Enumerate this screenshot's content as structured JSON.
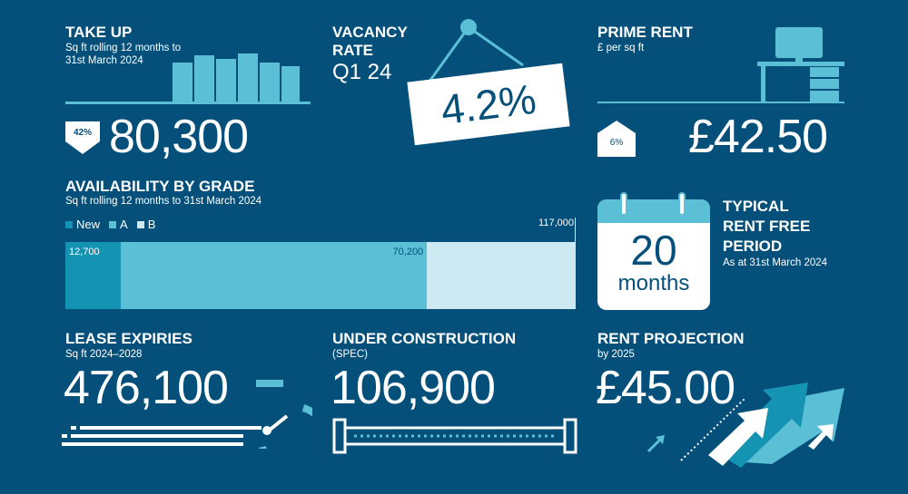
{
  "colors": {
    "background": "#05507a",
    "new": "#1593b3",
    "a": "#5bc0d6",
    "b": "#cde9f1",
    "accent": "#5bc0d6"
  },
  "take_up": {
    "title": "TAKE UP",
    "subtitle_1": "Sq ft rolling 12 months to",
    "subtitle_2": "31st March 2024",
    "value": "80,300",
    "change": "42%",
    "direction": "down"
  },
  "vacancy": {
    "title_1": "VACANCY",
    "title_2": "RATE",
    "period": "Q1 24",
    "value": "4.2%"
  },
  "prime_rent": {
    "title": "PRIME RENT",
    "subtitle": "£ per sq ft",
    "value": "£42.50",
    "change": "6%",
    "direction": "up"
  },
  "availability": {
    "title": "AVAILABILITY BY GRADE",
    "subtitle": "Sq ft rolling 12 months to 31st March 2024"
  },
  "chart_data": {
    "type": "bar",
    "orientation": "horizontal-stacked",
    "title": "AVAILABILITY BY GRADE",
    "series": [
      {
        "name": "New",
        "value": 12700,
        "label": "12,700"
      },
      {
        "name": "A",
        "value": 70200,
        "label": "70,200"
      },
      {
        "name": "B",
        "value": 34100
      }
    ],
    "total_label": "117,000",
    "total": 117000,
    "legend": "top-left"
  },
  "rent_free": {
    "value": "20",
    "unit": "months",
    "title_1": "TYPICAL",
    "title_2": "RENT FREE",
    "title_3": "PERIOD",
    "subtitle": "As at 31st March 2024"
  },
  "lease_expiries": {
    "title": "LEASE EXPIRIES",
    "subtitle": "Sq ft 2024–2028",
    "value": "476,100"
  },
  "under_construction": {
    "title": "UNDER CONSTRUCTION",
    "subtitle": "(SPEC)",
    "value": "106,900"
  },
  "rent_projection": {
    "title": "RENT PROJECTION",
    "subtitle": "by 2025",
    "value": "£45.00"
  }
}
